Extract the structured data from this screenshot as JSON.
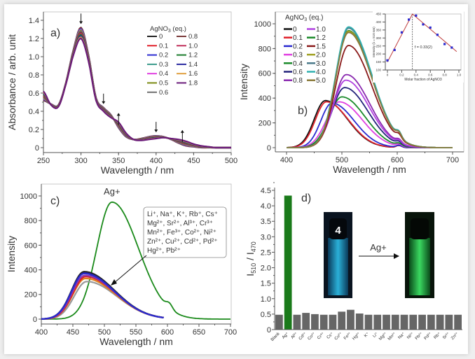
{
  "chart_data": [
    {
      "id": "a",
      "type": "line",
      "panel_label": "a)",
      "xlabel": "Wavelength / nm",
      "ylabel": "Absorbance / arb. unit",
      "xlim": [
        250,
        500
      ],
      "ylim": [
        0,
        1.4
      ],
      "xticks": [
        250,
        300,
        350,
        400,
        450,
        500
      ],
      "yticks": [
        0,
        0.2,
        0.4,
        0.6,
        0.8,
        1.0,
        1.2,
        1.4
      ],
      "ytick_labels": [
        "0",
        "0.2",
        "0.4",
        "0.6",
        "0.8",
        "1.0",
        "1.2",
        "1.4"
      ],
      "legend_title": "AgNO3 (eq.)",
      "legend_placement": "top-right",
      "x": [
        250,
        260,
        270,
        280,
        290,
        300,
        310,
        320,
        330,
        340,
        350,
        360,
        370,
        380,
        390,
        400,
        410,
        420,
        430,
        440,
        450,
        460,
        470,
        480,
        490,
        500
      ],
      "y_start": [
        0.52,
        0.48,
        0.47,
        0.72,
        1.08,
        1.32,
        1.02,
        0.55,
        0.44,
        0.36,
        0.22,
        0.12,
        0.09,
        0.1,
        0.12,
        0.13,
        0.12,
        0.09,
        0.05,
        0.02,
        0.01,
        0.0,
        0.0,
        0.0,
        0.0,
        0.0
      ],
      "y_end": [
        0.62,
        0.47,
        0.45,
        0.7,
        1.02,
        1.2,
        0.95,
        0.52,
        0.4,
        0.33,
        0.28,
        0.16,
        0.09,
        0.08,
        0.09,
        0.1,
        0.11,
        0.1,
        0.09,
        0.07,
        0.04,
        0.02,
        0.01,
        0.0,
        0.0,
        0.0
      ],
      "series": [
        {
          "name": "0",
          "eq": 0,
          "color": "#222222"
        },
        {
          "name": "0.1",
          "eq": 0.1,
          "color": "#e0202a"
        },
        {
          "name": "0.2",
          "eq": 0.2,
          "color": "#2a2ad0"
        },
        {
          "name": "0.3",
          "eq": 0.3,
          "color": "#3a9a8a"
        },
        {
          "name": "0.4",
          "eq": 0.4,
          "color": "#e040e0"
        },
        {
          "name": "0.5",
          "eq": 0.5,
          "color": "#7a8a10"
        },
        {
          "name": "0.6",
          "eq": 0.6,
          "color": "#707070"
        },
        {
          "name": "0.8",
          "eq": 0.8,
          "color": "#7a3a3a"
        },
        {
          "name": "1.0",
          "eq": 1.0,
          "color": "#c0305a"
        },
        {
          "name": "1.2",
          "eq": 1.2,
          "color": "#1a7a2a"
        },
        {
          "name": "1.4",
          "eq": 1.4,
          "color": "#2a2aa0"
        },
        {
          "name": "1.6",
          "eq": 1.6,
          "color": "#e0a040"
        },
        {
          "name": "1.8",
          "eq": 1.8,
          "color": "#6a1a7a"
        }
      ],
      "arrows": [
        {
          "nm": 300,
          "dir": "down"
        },
        {
          "nm": 330,
          "dir": "down"
        },
        {
          "nm": 350,
          "dir": "up"
        },
        {
          "nm": 400,
          "dir": "down"
        },
        {
          "nm": 435,
          "dir": "up"
        }
      ]
    },
    {
      "id": "b",
      "type": "line",
      "panel_label": "b)",
      "xlabel": "Wavelength / nm",
      "ylabel": "Intensity",
      "xlim": [
        400,
        700
      ],
      "ylim": [
        0,
        1050
      ],
      "xticks": [
        400,
        500,
        600,
        700
      ],
      "yticks": [
        0,
        200,
        400,
        600,
        800,
        1000
      ],
      "legend_title": "AgNO3 (eq.)",
      "legend_placement": "top-left",
      "series": [
        {
          "name": "0",
          "color": "#111111",
          "peak_nm": 470,
          "peak_intensity": 380
        },
        {
          "name": "0.1",
          "color": "#e0202a",
          "peak_nm": 472,
          "peak_intensity": 370
        },
        {
          "name": "0.2",
          "color": "#2a2ad0",
          "peak_nm": 482,
          "peak_intensity": 360
        },
        {
          "name": "0.3",
          "color": "#e040e0",
          "peak_nm": 495,
          "peak_intensity": 370
        },
        {
          "name": "0.4",
          "color": "#1a8a2a",
          "peak_nm": 500,
          "peak_intensity": 410
        },
        {
          "name": "0.6",
          "color": "#22227a",
          "peak_nm": 505,
          "peak_intensity": 485
        },
        {
          "name": "0.8",
          "color": "#8a2ab0",
          "peak_nm": 508,
          "peak_intensity": 590
        },
        {
          "name": "1.0",
          "color": "#b040e0",
          "peak_nm": 507,
          "peak_intensity": 545
        },
        {
          "name": "1.2",
          "color": "#1a8a2a",
          "peak_nm": 512,
          "peak_intensity": 945
        },
        {
          "name": "1.5",
          "color": "#8a1a1a",
          "peak_nm": 512,
          "peak_intensity": 825
        },
        {
          "name": "2.0",
          "color": "#a0a020",
          "peak_nm": 512,
          "peak_intensity": 940
        },
        {
          "name": "3.0",
          "color": "#4a7a8a",
          "peak_nm": 512,
          "peak_intensity": 965
        },
        {
          "name": "4.0",
          "color": "#30b0b0",
          "peak_nm": 512,
          "peak_intensity": 975
        },
        {
          "name": "5.0",
          "color": "#8a7a3a",
          "peak_nm": 512,
          "peak_intensity": 930
        }
      ]
    },
    {
      "id": "b-inset",
      "type": "scatter",
      "xlabel": "Molar fraction of AgNO3",
      "ylabel": "Intensity (λ = 510 nm)",
      "xlim": [
        0,
        1.0
      ],
      "ylim": [
        100,
        450
      ],
      "xticks": [
        0,
        0.2,
        0.4,
        0.6,
        0.8,
        1.0
      ],
      "xtick_labels": [
        "0",
        "0.2",
        "0.4",
        "0.6",
        "0.8",
        "1.0"
      ],
      "yticks": [
        100,
        150,
        200,
        250,
        300,
        350,
        400,
        450
      ],
      "annotation": "f = 0.33(2)",
      "marker_color": "#2a2ad0",
      "fit_color": "#c04040",
      "points": {
        "x": [
          0,
          0.1,
          0.2,
          0.3,
          0.4,
          0.5,
          0.6,
          0.7,
          0.8,
          0.9
        ],
        "y": [
          160,
          225,
          335,
          415,
          440,
          385,
          365,
          320,
          262,
          240
        ]
      },
      "fit_line": {
        "x": [
          0,
          0.35,
          0.97
        ],
        "y": [
          150,
          450,
          215
        ]
      },
      "vline_x": 0.35
    },
    {
      "id": "c",
      "type": "line",
      "panel_label": "c)",
      "xlabel": "Wavelength / nm",
      "ylabel": "Intensity",
      "xlim": [
        400,
        700
      ],
      "ylim": [
        0,
        1100
      ],
      "xticks": [
        400,
        450,
        500,
        550,
        600,
        650,
        700
      ],
      "yticks": [
        0,
        200,
        400,
        600,
        800,
        1000
      ],
      "annotation_ag": "Ag+",
      "annotation_others": [
        "Li⁺, Na⁺, K⁺, Rb⁺, Cs⁺",
        "Mg²⁺, Sr²⁺, Al³⁺, Cr³⁺",
        "Mn²⁺, Fe³⁺, Co²⁺, Ni²⁺",
        "Zn²⁺, Cu²⁺, Cd²⁺, Pd²⁺",
        "Hg²⁺, Pb²⁺"
      ],
      "series": [
        {
          "name": "Ag+",
          "color": "#1a8a1a",
          "peak_nm": 512,
          "peak_intensity": 950
        },
        {
          "color": "#999999",
          "peak_nm": 472,
          "peak_intensity": 305
        },
        {
          "color": "#e08020",
          "peak_nm": 470,
          "peak_intensity": 330
        },
        {
          "color": "#e02020",
          "peak_nm": 470,
          "peak_intensity": 345
        },
        {
          "color": "#8a3ab0",
          "peak_nm": 469,
          "peak_intensity": 355
        },
        {
          "color": "#222222",
          "peak_nm": 468,
          "peak_intensity": 385
        },
        {
          "color": "#22227a",
          "peak_nm": 468,
          "peak_intensity": 375
        },
        {
          "color": "#2a2ad0",
          "peak_nm": 468,
          "peak_intensity": 370
        }
      ]
    },
    {
      "id": "d",
      "type": "bar",
      "panel_label": "d)",
      "ylabel": {
        "main": "I",
        "sub1": "510",
        "mid": " / I",
        "sub2": "470"
      },
      "ylim": [
        0,
        4.5
      ],
      "yticks": [
        0,
        0.5,
        1.0,
        1.5,
        2.0,
        2.5,
        3.0,
        3.5,
        4.0,
        4.5
      ],
      "ytick_labels": [
        "0",
        "0.5",
        "1.0",
        "1.5",
        "2.0",
        "2.5",
        "3.0",
        "3.5",
        "4.0",
        "4.5"
      ],
      "categories": [
        "Blank",
        "Ag⁺",
        "Al³⁺",
        "Cd²⁺",
        "Co²⁺",
        "Cr³⁺",
        "Cs⁺",
        "Cu²⁺",
        "Fe³⁺",
        "Hg²⁺",
        "K⁺",
        "Li⁺",
        "Mg²⁺",
        "Mn²⁺",
        "Na⁺",
        "Ni²⁺",
        "Pb²⁺",
        "Pd²⁺",
        "Rb⁺",
        "Sr²⁺",
        "Zn²⁺"
      ],
      "values": [
        0.48,
        4.33,
        0.48,
        0.54,
        0.5,
        0.48,
        0.48,
        0.58,
        0.64,
        0.52,
        0.48,
        0.48,
        0.48,
        0.48,
        0.48,
        0.48,
        0.48,
        0.48,
        0.48,
        0.48,
        0.48
      ],
      "bar_color": "#666666",
      "highlight_color": "#1a7a1a",
      "photo_label": "4",
      "photo_arrow_label": "Ag+",
      "photo_colors": {
        "before": "#2ab0d8",
        "after": "#3ad860"
      }
    }
  ]
}
